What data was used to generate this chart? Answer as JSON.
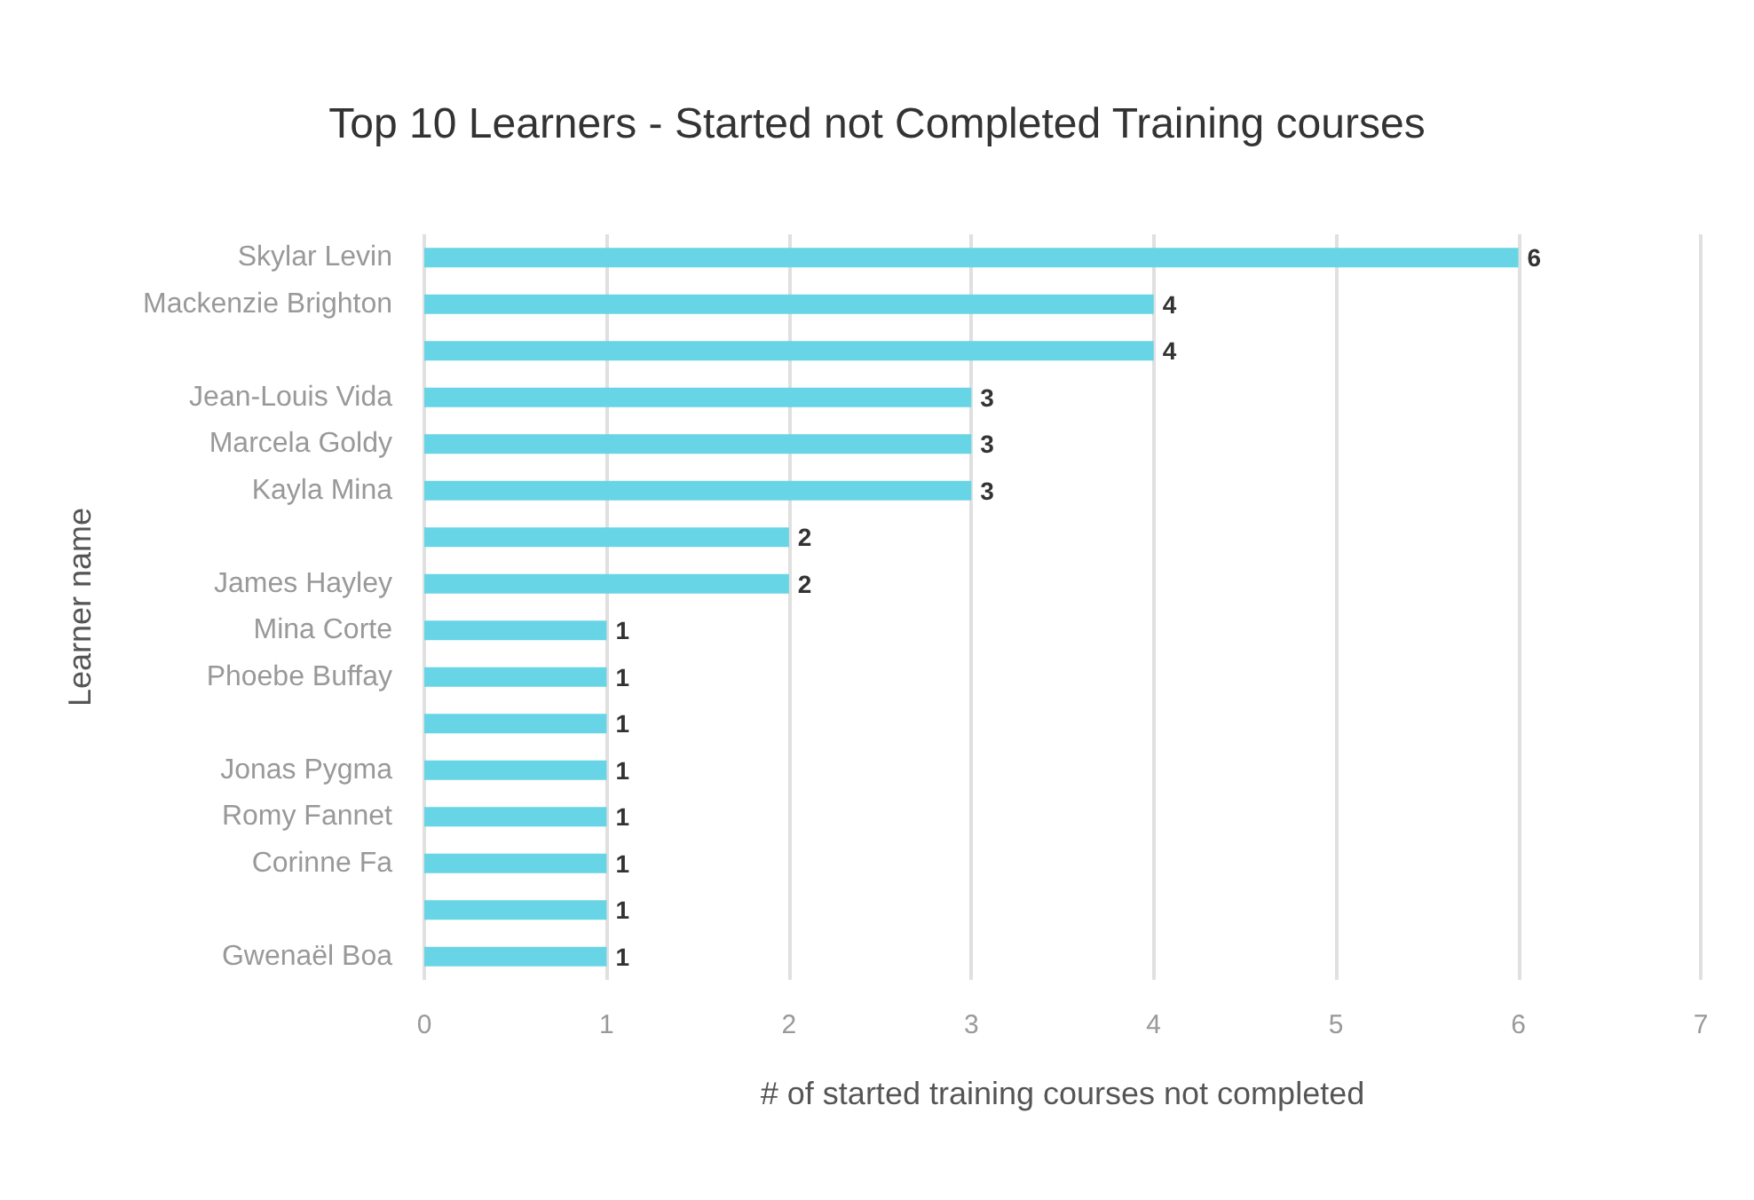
{
  "chart_data": {
    "type": "bar",
    "orientation": "horizontal",
    "title": "Top 10 Learners - Started not Completed Training courses",
    "xlabel": "# of started training courses not completed",
    "ylabel": "Learner name",
    "categories": [
      "Skylar Levin",
      "Mackenzie Brighton",
      null,
      "Jean-Louis Vida",
      "Marcela Goldy",
      "Kayla Mina",
      null,
      "James Hayley",
      "Mina Corte",
      "Phoebe Buffay",
      null,
      "Jonas Pygma",
      "Romy Fannet",
      "Corinne Fa",
      null,
      "Gwenaël Boa"
    ],
    "values": [
      6,
      4,
      4,
      3,
      3,
      3,
      2,
      2,
      1,
      1,
      1,
      1,
      1,
      1,
      1,
      1
    ],
    "color": "#67d5e5",
    "xlim": [
      0,
      7
    ],
    "xticks": [
      0,
      1,
      2,
      3,
      4,
      5,
      6,
      7
    ],
    "grid": "x",
    "data_labels": true
  }
}
